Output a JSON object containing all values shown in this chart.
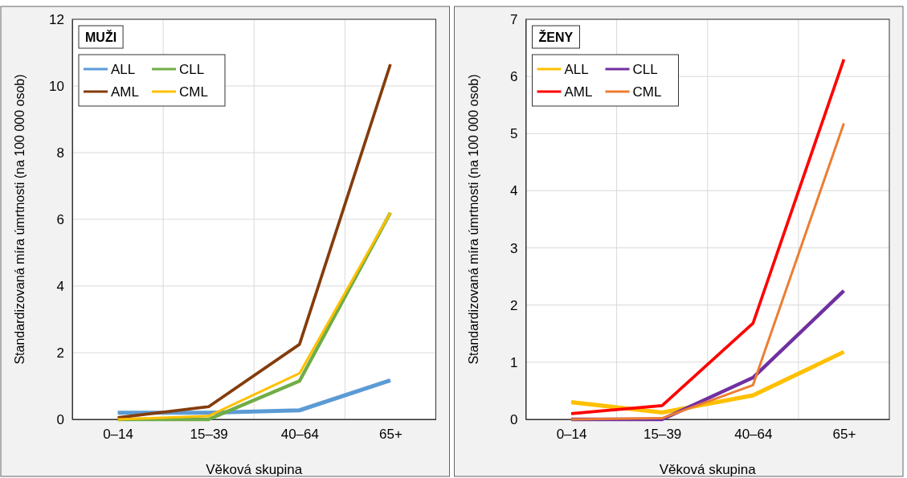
{
  "chart_data": [
    {
      "type": "line",
      "title": "MUŽI",
      "xlabel": "Věková skupina",
      "ylabel": "Standardizovaná míra úmrtnosti (na 100 000 osob)",
      "categories": [
        "0–14",
        "15–39",
        "40–64",
        "65+"
      ],
      "ylim": [
        0,
        12
      ],
      "yticks": [
        0,
        2,
        4,
        6,
        8,
        10,
        12
      ],
      "grid": true,
      "legend": "top left",
      "series": [
        {
          "name": "ALL",
          "color": "#5b9bd5",
          "values": [
            0.2,
            0.2,
            0.27,
            1.17
          ]
        },
        {
          "name": "CLL",
          "color": "#70ad47",
          "values": [
            0,
            0,
            1.15,
            6.2
          ]
        },
        {
          "name": "AML",
          "color": "#843c0c",
          "values": [
            0.05,
            0.38,
            2.25,
            10.65
          ]
        },
        {
          "name": "CML",
          "color": "#ffc000",
          "values": [
            0,
            0.1,
            1.38,
            6.2
          ]
        }
      ]
    },
    {
      "type": "line",
      "title": "ŽENY",
      "xlabel": "Věková skupina",
      "ylabel": "Standardizovaná míra úmrtnosti (na 100 000 osob)",
      "categories": [
        "0–14",
        "15–39",
        "40–64",
        "65+"
      ],
      "ylim": [
        0,
        7
      ],
      "yticks": [
        0,
        1,
        2,
        3,
        4,
        5,
        6,
        7
      ],
      "grid": true,
      "legend": "top left",
      "series": [
        {
          "name": "ALL",
          "color": "#ffc000",
          "values": [
            0.3,
            0.12,
            0.42,
            1.18
          ]
        },
        {
          "name": "CLL",
          "color": "#7030a0",
          "values": [
            0,
            0,
            0.73,
            2.25
          ]
        },
        {
          "name": "AML",
          "color": "#ff0000",
          "values": [
            0.1,
            0.24,
            1.68,
            6.3
          ]
        },
        {
          "name": "CML",
          "color": "#ed7d31",
          "values": [
            0,
            0.02,
            0.6,
            5.18
          ]
        }
      ]
    }
  ]
}
